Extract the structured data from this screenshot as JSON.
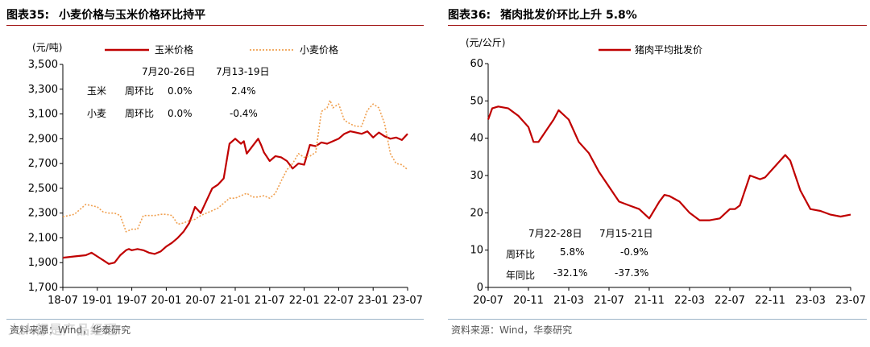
{
  "left": {
    "fig_no": "图表35:",
    "title": "小麦价格与玉米价格环比持平",
    "unit": "(元/吨)",
    "source": "资料来源：Wind，华泰研究",
    "watermark": "人人都是产品经理",
    "annot": {
      "date1": "7月20-26日",
      "date2": "7月13-19日",
      "corn_label": "玉米",
      "wheat_label": "小麦",
      "wow_label_1": "周环比",
      "wow_label_2": "周环比",
      "corn_v1": "0.0%",
      "corn_v2": "2.4%",
      "wheat_v1": "0.0%",
      "wheat_v2": "-0.4%"
    }
  },
  "right": {
    "fig_no": "图表36:",
    "title": "猪肉批发价环比上升 5.8%",
    "unit": "(元/公斤)",
    "source": "资料来源：Wind，华泰研究",
    "annot": {
      "date1": "7月22-28日",
      "date2": "7月15-21日",
      "wow_label": "周环比",
      "yoy_label": "年同比",
      "wow_v1": "5.8%",
      "wow_v2": "-0.9%",
      "yoy_v1": "-32.1%",
      "yoy_v2": "-37.3%"
    }
  },
  "colors": {
    "corn": "#c00000",
    "wheat": "#f0a050",
    "pork": "#c00000",
    "title_rule": "#a01010"
  },
  "chart_data": [
    {
      "type": "line",
      "title": "小麦价格与玉米价格环比持平",
      "ylabel": "(元/吨)",
      "ylim": [
        1700,
        3500
      ],
      "yticks": [
        1700,
        1900,
        2100,
        2300,
        2500,
        2700,
        2900,
        3100,
        3300,
        3500
      ],
      "xlim": [
        0,
        60
      ],
      "xticks": [
        "18-07",
        "19-01",
        "19-07",
        "20-01",
        "20-07",
        "21-01",
        "21-07",
        "22-01",
        "22-07",
        "23-01",
        "23-07"
      ],
      "legend": "top",
      "grid": false,
      "series": [
        {
          "name": "玉米价格",
          "style": "solid",
          "color": "#c00000",
          "x": [
            0,
            2,
            4,
            5,
            6,
            7,
            8,
            9,
            10,
            11,
            11.5,
            12,
            13,
            14,
            15,
            16,
            17,
            18,
            19,
            20,
            21,
            22,
            23,
            24,
            25,
            26,
            27,
            28,
            29,
            30,
            31,
            31.5,
            32,
            33,
            34,
            34.5,
            35,
            36,
            37,
            38,
            39,
            40,
            41,
            42,
            43,
            44,
            45,
            46,
            47,
            48,
            49,
            50,
            51,
            52,
            53,
            54,
            55,
            56,
            57,
            58,
            59,
            60
          ],
          "values": [
            1940,
            1950,
            1960,
            1980,
            1950,
            1920,
            1890,
            1900,
            1960,
            2000,
            2010,
            2000,
            2010,
            2000,
            1980,
            1970,
            1990,
            2030,
            2060,
            2100,
            2150,
            2220,
            2350,
            2300,
            2400,
            2500,
            2530,
            2580,
            2860,
            2900,
            2860,
            2880,
            2780,
            2840,
            2900,
            2850,
            2790,
            2720,
            2760,
            2750,
            2720,
            2660,
            2700,
            2690,
            2850,
            2840,
            2870,
            2860,
            2880,
            2900,
            2940,
            2960,
            2950,
            2940,
            2960,
            2910,
            2950,
            2920,
            2900,
            2910,
            2890,
            2940
          ]
        },
        {
          "name": "小麦价格",
          "style": "dotted",
          "color": "#f0a050",
          "x": [
            0,
            2,
            4,
            5,
            6,
            7,
            8,
            9,
            10,
            11,
            12,
            13,
            14,
            15,
            16,
            17,
            18,
            19,
            20,
            21,
            22,
            23,
            24,
            25,
            26,
            27,
            28,
            29,
            30,
            31,
            32,
            33,
            34,
            35,
            36,
            37,
            38,
            39,
            40,
            41,
            42,
            43,
            44,
            45,
            46,
            46.5,
            47,
            48,
            49,
            50,
            51,
            52,
            53,
            54,
            55,
            56,
            57,
            58,
            59,
            60
          ],
          "values": [
            2270,
            2290,
            2370,
            2360,
            2350,
            2310,
            2300,
            2300,
            2280,
            2150,
            2170,
            2170,
            2280,
            2280,
            2280,
            2290,
            2290,
            2280,
            2210,
            2220,
            2240,
            2250,
            2280,
            2300,
            2320,
            2340,
            2380,
            2420,
            2420,
            2440,
            2460,
            2430,
            2430,
            2440,
            2420,
            2460,
            2560,
            2650,
            2700,
            2780,
            2750,
            2760,
            2790,
            3120,
            3150,
            3210,
            3150,
            3180,
            3050,
            3020,
            3000,
            3000,
            3130,
            3180,
            3150,
            3020,
            2780,
            2700,
            2690,
            2650
          ]
        }
      ]
    },
    {
      "type": "line",
      "title": "猪肉批发价环比上升 5.8%",
      "ylabel": "(元/公斤)",
      "ylim": [
        0,
        60
      ],
      "yticks": [
        0,
        10,
        20,
        30,
        40,
        50,
        60
      ],
      "xlim": [
        0,
        36
      ],
      "xticks": [
        "20-07",
        "20-11",
        "21-03",
        "21-07",
        "21-11",
        "22-03",
        "22-07",
        "22-11",
        "23-03",
        "23-07"
      ],
      "legend": "top",
      "grid": false,
      "series": [
        {
          "name": "猪肉平均批发价",
          "style": "solid",
          "color": "#c00000",
          "x": [
            0,
            0.4,
            1,
            2,
            3,
            4,
            4.5,
            5,
            6,
            6.5,
            7,
            8,
            9,
            10,
            11,
            12,
            13,
            14,
            15,
            16,
            17,
            17.5,
            18,
            19,
            20,
            21,
            22,
            23,
            24,
            24.5,
            25,
            26,
            27,
            27.5,
            28,
            29,
            29.5,
            30,
            31,
            32,
            33,
            34,
            35,
            36
          ],
          "values": [
            45,
            48,
            48.5,
            48,
            46,
            43,
            39,
            39,
            43,
            45,
            47.5,
            45,
            39,
            36,
            31,
            27,
            23,
            22,
            21,
            18.5,
            23,
            24.8,
            24.5,
            23,
            20,
            18,
            18,
            18.5,
            21,
            21,
            22,
            30,
            29,
            29.5,
            31,
            34,
            35.5,
            34,
            26,
            21,
            20.5,
            19.5,
            19,
            19.5
          ]
        }
      ]
    }
  ]
}
